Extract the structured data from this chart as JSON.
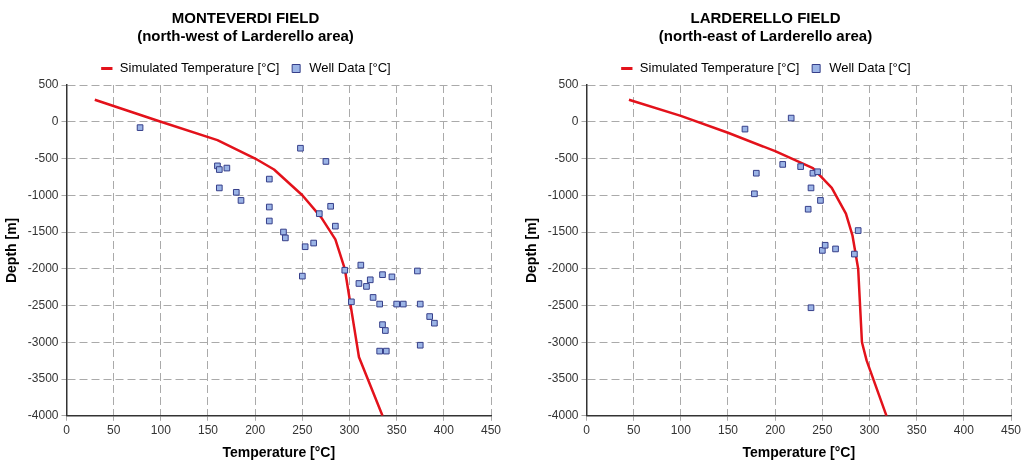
{
  "chart_data": [
    {
      "type": "scatter",
      "title": "MONTEVERDI FIELD\n(north-west of Larderello area)",
      "xlabel": "Temperature [°C]",
      "ylabel": "Depth [m]",
      "xlim": [
        0,
        450
      ],
      "xticks": [
        0,
        50,
        100,
        150,
        200,
        250,
        300,
        350,
        400,
        450
      ],
      "ylim": [
        -4000,
        500
      ],
      "yticks": [
        500,
        0,
        -500,
        -1000,
        -1500,
        -2000,
        -2500,
        -3000,
        -3500,
        -4000
      ],
      "grid": true,
      "legend": "top",
      "series": [
        {
          "name": "Simulated Temperature [°C]",
          "type": "line",
          "color": "#e3121b",
          "marker": "none",
          "x": [
            30,
            100,
            160,
            200,
            220,
            250,
            270,
            285,
            295,
            300,
            305,
            310,
            335
          ],
          "values": [
            300,
            0,
            -250,
            -500,
            -650,
            -1000,
            -1300,
            -1600,
            -2000,
            -2400,
            -2800,
            -3200,
            -4000
          ]
        },
        {
          "name": "Well Data [°C]",
          "type": "scatter",
          "color": "#9bb4e6",
          "marker": "square",
          "x": [
            78,
            160,
            162,
            170,
            162,
            180,
            185,
            215,
            215,
            215,
            230,
            232,
            248,
            275,
            280,
            268,
            285,
            250,
            253,
            262,
            295,
            302,
            310,
            312,
            318,
            322,
            325,
            332,
            335,
            345,
            350,
            357,
            372,
            375,
            385,
            390,
            335,
            338,
            375,
            332,
            339
          ],
          "values": [
            -80,
            -600,
            -650,
            -630,
            -900,
            -960,
            -1070,
            -780,
            -1160,
            -1350,
            -1500,
            -1580,
            -360,
            -540,
            -1150,
            -1250,
            -1420,
            -2100,
            -1700,
            -1650,
            -2020,
            -2450,
            -2200,
            -1950,
            -2240,
            -2150,
            -2390,
            -2480,
            -2080,
            -2110,
            -2480,
            -2480,
            -2030,
            -2480,
            -2650,
            -2740,
            -2760,
            -2840,
            -3040,
            -3120,
            -3120
          ]
        }
      ]
    },
    {
      "type": "scatter",
      "title": "LARDERELLO FIELD\n(north-east of Larderello area)",
      "xlabel": "Temperature [°C]",
      "ylabel": "Depth [m]",
      "xlim": [
        0,
        450
      ],
      "xticks": [
        0,
        50,
        100,
        150,
        200,
        250,
        300,
        350,
        400,
        450
      ],
      "ylim": [
        -4000,
        500
      ],
      "yticks": [
        500,
        0,
        -500,
        -1000,
        -1500,
        -2000,
        -2500,
        -3000,
        -3500,
        -4000
      ],
      "grid": true,
      "legend": "top",
      "series": [
        {
          "name": "Simulated Temperature [°C]",
          "type": "line",
          "color": "#e3121b",
          "marker": "none",
          "x": [
            45,
            100,
            150,
            200,
            240,
            260,
            275,
            282,
            288,
            292,
            297,
            318
          ],
          "values": [
            300,
            80,
            -150,
            -400,
            -630,
            -900,
            -1250,
            -1550,
            -2000,
            -3000,
            -3250,
            -4000
          ]
        },
        {
          "name": "Well Data [°C]",
          "type": "scatter",
          "color": "#9bb4e6",
          "marker": "square",
          "x": [
            168,
            217,
            180,
            178,
            208,
            227,
            240,
            245,
            238,
            248,
            235,
            250,
            253,
            264,
            284,
            288,
            238
          ],
          "values": [
            -100,
            50,
            -700,
            -980,
            -580,
            -610,
            -700,
            -680,
            -900,
            -1070,
            -1190,
            -1750,
            -1680,
            -1730,
            -1800,
            -1480,
            -2530
          ]
        }
      ]
    }
  ]
}
